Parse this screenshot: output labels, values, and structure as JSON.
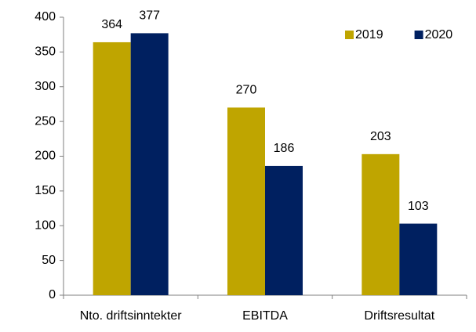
{
  "chart_data": {
    "type": "bar",
    "categories": [
      "Nto. driftsinntekter",
      "EBITDA",
      "Driftsresultat"
    ],
    "series": [
      {
        "name": "2019",
        "color": "#bfa500",
        "values": [
          364,
          270,
          203
        ]
      },
      {
        "name": "2020",
        "color": "#002060",
        "values": [
          377,
          186,
          103
        ]
      }
    ],
    "ylim": [
      0,
      400
    ],
    "yticks": [
      0,
      50,
      100,
      150,
      200,
      250,
      300,
      350,
      400
    ],
    "grid": false,
    "legend": "top-right"
  }
}
